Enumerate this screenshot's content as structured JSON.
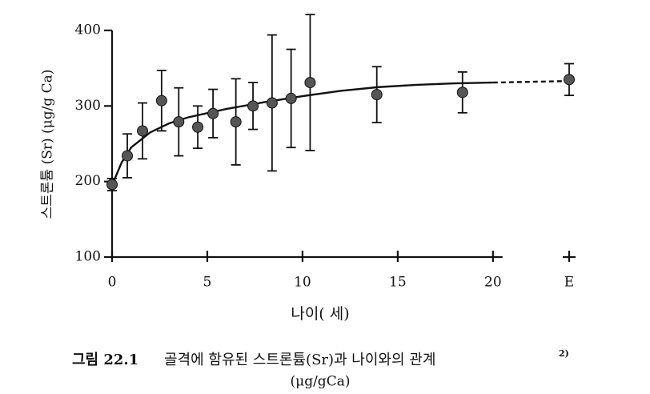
{
  "chart_data": {
    "type": "scatter",
    "figure_label": "그림 22.1",
    "title": "골격에 함유된 스트론튬(Sr)과 나이와의 관계",
    "title_note": "2)",
    "subtitle": "(μg/gCa)",
    "x_label": "나이( 세)",
    "y_label": "스트론튬 (Sr) (μg/g Ca)",
    "xlim": [
      0,
      24
    ],
    "ylim": [
      100,
      400
    ],
    "xticks": [
      0,
      5,
      10,
      15,
      20,
      {
        "value": 24,
        "label": "E"
      }
    ],
    "yticks": [
      100,
      200,
      300,
      400
    ],
    "color": "#555555",
    "points": {
      "x": [
        0,
        0.8,
        1.6,
        2.6,
        3.5,
        4.5,
        5.3,
        6.5,
        7.4,
        8.4,
        9.4,
        10.4,
        13.9,
        18.4,
        24
      ],
      "values": [
        196,
        234,
        267,
        307,
        279,
        272,
        290,
        279,
        300,
        304,
        310,
        331,
        315,
        318,
        335
      ],
      "errors": [
        8,
        29,
        37,
        40,
        45,
        28,
        32,
        57,
        31,
        90,
        65,
        90,
        37,
        27,
        21
      ]
    },
    "fit": {
      "x": [
        0,
        0.5,
        1,
        2,
        3,
        4,
        6,
        8,
        10,
        12,
        14,
        16,
        18,
        20
      ],
      "values": [
        195,
        225,
        245,
        265,
        277,
        285,
        296,
        305,
        313,
        320,
        325,
        328,
        330,
        331
      ]
    },
    "fit_extension": {
      "x": [
        20,
        24
      ],
      "values": [
        331,
        333
      ]
    }
  }
}
